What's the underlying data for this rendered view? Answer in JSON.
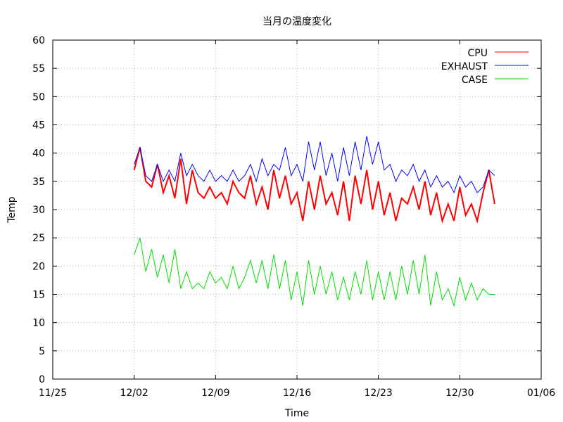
{
  "chart_data": {
    "type": "line",
    "title": "当月の温度変化",
    "xlabel": "Time",
    "ylabel": "Temp",
    "ylim": [
      0,
      60
    ],
    "yticks": [
      0,
      5,
      10,
      15,
      20,
      25,
      30,
      35,
      40,
      45,
      50,
      55,
      60
    ],
    "xlim": [
      "11/25",
      "01/06"
    ],
    "xticks": [
      "11/25",
      "12/02",
      "12/09",
      "12/16",
      "12/23",
      "12/30",
      "01/06"
    ],
    "grid": true,
    "legend_position": "top-right",
    "series": [
      {
        "name": "CPU",
        "color": "#ff0000",
        "x": [
          "12/01",
          "12/01 12:00",
          "12/02",
          "12/02 12:00",
          "12/03",
          "12/03 12:00",
          "12/04",
          "12/04 12:00",
          "12/05",
          "12/05 12:00",
          "12/06",
          "12/06 12:00",
          "12/07",
          "12/07 12:00",
          "12/08",
          "12/08 12:00",
          "12/09",
          "12/09 12:00",
          "12/10",
          "12/10 12:00",
          "12/11",
          "12/11 12:00",
          "12/12",
          "12/12 12:00",
          "12/13",
          "12/13 12:00",
          "12/14",
          "12/14 12:00",
          "12/15",
          "12/15 12:00",
          "12/16",
          "12/16 12:00",
          "12/17",
          "12/17 12:00",
          "12/18",
          "12/18 12:00",
          "12/19",
          "12/19 12:00",
          "12/20",
          "12/20 12:00",
          "12/21",
          "12/21 12:00",
          "12/22",
          "12/22 12:00",
          "12/23",
          "12/23 12:00",
          "12/24",
          "12/24 12:00",
          "12/25",
          "12/25 12:00",
          "12/26",
          "12/26 12:00",
          "12/27",
          "12/27 12:00",
          "12/28",
          "12/28 12:00",
          "12/29",
          "12/29 12:00",
          "12/30",
          "12/30 12:00",
          "12/31",
          "12/31 12:00",
          "01/01"
        ],
        "values": [
          37,
          41,
          35,
          34,
          38,
          33,
          36,
          32,
          39,
          31,
          37,
          33,
          32,
          34,
          32,
          33,
          31,
          35,
          33,
          32,
          36,
          31,
          34,
          30,
          37,
          32,
          36,
          31,
          33,
          28,
          35,
          30,
          36,
          31,
          33,
          29,
          35,
          28,
          36,
          31,
          37,
          30,
          35,
          29,
          33,
          28,
          32,
          31,
          34,
          30,
          35,
          29,
          33,
          28,
          31,
          28,
          34,
          29,
          31,
          28,
          33,
          37,
          31
        ]
      },
      {
        "name": "EXHAUST",
        "color": "#0000ff",
        "x": [
          "12/01",
          "12/01 12:00",
          "12/02",
          "12/02 12:00",
          "12/03",
          "12/03 12:00",
          "12/04",
          "12/04 12:00",
          "12/05",
          "12/05 12:00",
          "12/06",
          "12/06 12:00",
          "12/07",
          "12/07 12:00",
          "12/08",
          "12/08 12:00",
          "12/09",
          "12/09 12:00",
          "12/10",
          "12/10 12:00",
          "12/11",
          "12/11 12:00",
          "12/12",
          "12/12 12:00",
          "12/13",
          "12/13 12:00",
          "12/14",
          "12/14 12:00",
          "12/15",
          "12/15 12:00",
          "12/16",
          "12/16 12:00",
          "12/17",
          "12/17 12:00",
          "12/18",
          "12/18 12:00",
          "12/19",
          "12/19 12:00",
          "12/20",
          "12/20 12:00",
          "12/21",
          "12/21 12:00",
          "12/22",
          "12/22 12:00",
          "12/23",
          "12/23 12:00",
          "12/24",
          "12/24 12:00",
          "12/25",
          "12/25 12:00",
          "12/26",
          "12/26 12:00",
          "12/27",
          "12/27 12:00",
          "12/28",
          "12/28 12:00",
          "12/29",
          "12/29 12:00",
          "12/30",
          "12/30 12:00",
          "12/31",
          "12/31 12:00",
          "01/01"
        ],
        "values": [
          38,
          41,
          36,
          35,
          38,
          35,
          37,
          35,
          40,
          36,
          38,
          36,
          35,
          37,
          35,
          36,
          35,
          37,
          35,
          36,
          38,
          35,
          39,
          36,
          38,
          37,
          41,
          36,
          38,
          35,
          42,
          37,
          42,
          36,
          40,
          35,
          41,
          36,
          42,
          37,
          43,
          38,
          42,
          37,
          38,
          35,
          37,
          36,
          38,
          35,
          37,
          34,
          36,
          34,
          35,
          33,
          36,
          34,
          35,
          33,
          34,
          37,
          36
        ]
      },
      {
        "name": "CASE",
        "color": "#00dd00",
        "x": [
          "12/01",
          "12/01 12:00",
          "12/02",
          "12/02 12:00",
          "12/03",
          "12/03 12:00",
          "12/04",
          "12/04 12:00",
          "12/05",
          "12/05 12:00",
          "12/06",
          "12/06 12:00",
          "12/07",
          "12/07 12:00",
          "12/08",
          "12/08 12:00",
          "12/09",
          "12/09 12:00",
          "12/10",
          "12/10 12:00",
          "12/11",
          "12/11 12:00",
          "12/12",
          "12/12 12:00",
          "12/13",
          "12/13 12:00",
          "12/14",
          "12/14 12:00",
          "12/15",
          "12/15 12:00",
          "12/16",
          "12/16 12:00",
          "12/17",
          "12/17 12:00",
          "12/18",
          "12/18 12:00",
          "12/19",
          "12/19 12:00",
          "12/20",
          "12/20 12:00",
          "12/21",
          "12/21 12:00",
          "12/22",
          "12/22 12:00",
          "12/23",
          "12/23 12:00",
          "12/24",
          "12/24 12:00",
          "12/25",
          "12/25 12:00",
          "12/26",
          "12/26 12:00",
          "12/27",
          "12/27 12:00",
          "12/28",
          "12/28 12:00",
          "12/29",
          "12/29 12:00",
          "12/30",
          "12/30 12:00",
          "12/31",
          "12/31 12:00",
          "01/01"
        ],
        "values": [
          22,
          25,
          19,
          23,
          18,
          22,
          17,
          23,
          16,
          19,
          16,
          17,
          16,
          19,
          17,
          18,
          16,
          20,
          16,
          18,
          21,
          17,
          21,
          16,
          22,
          16,
          21,
          14,
          19,
          13,
          21,
          15,
          20,
          15,
          19,
          14,
          18,
          14,
          19,
          15,
          21,
          14,
          19,
          14,
          19,
          14,
          20,
          15,
          21,
          15,
          22,
          13,
          19,
          14,
          16,
          13,
          18,
          14,
          17,
          14,
          16,
          15,
          15
        ]
      }
    ]
  }
}
